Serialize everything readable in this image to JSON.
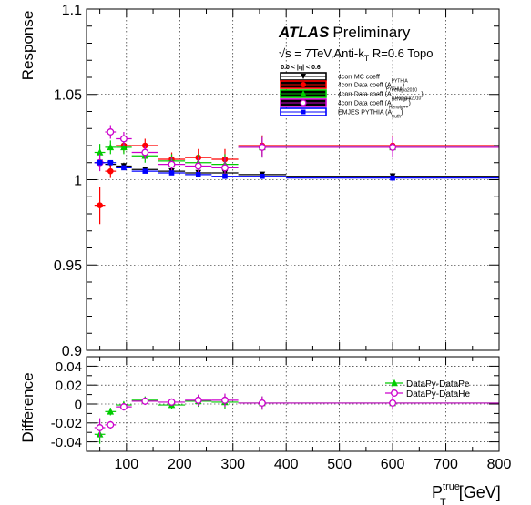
{
  "chart_data": [
    {
      "type": "scatter",
      "panel": "top",
      "ylabel": "Response",
      "ylim": [
        0.9,
        1.1
      ],
      "xlim": [
        25,
        800
      ],
      "grid": true,
      "yticks": [
        {
          "v": 0.9,
          "label": "0.9"
        },
        {
          "v": 0.95,
          "label": "0.95"
        },
        {
          "v": 1.0,
          "label": "1"
        },
        {
          "v": 1.05,
          "label": "1.05"
        },
        {
          "v": 1.1,
          "label": "1.1"
        }
      ],
      "title": {
        "bold": "ATLAS",
        "normal": "Preliminary"
      },
      "subtitle": {
        "a": "√s = 7TeV,Anti-k",
        "sub": "T",
        "b": " R=0.6 Topo"
      },
      "legend_header": "0.0 < |η| < 0.6",
      "legend": [
        {
          "name": "4corr MC coeff",
          "sup": "",
          "sub": "",
          "close": "",
          "color": "#000000",
          "box": "#ffffff",
          "marker": "down"
        },
        {
          "name": "4corr Data coeff (A",
          "sup": "PYTHIA",
          "sub": "PYTHIA",
          "close": ")",
          "color": "#ff0000",
          "box": "#000000",
          "marker": "circle"
        },
        {
          "name": "4corr Data coeff (A",
          "sup": "Perugia2010",
          "sub": "Perugia2010",
          "close": ")",
          "color": "#00cc00",
          "box": "#000000",
          "marker": "triangle"
        },
        {
          "name": "4corr Data coeff (A",
          "sup": "Herwig++",
          "sub": "Herwig++",
          "close": ")",
          "color": "#cc00cc",
          "box": "#000000",
          "marker": "open-circle"
        },
        {
          "name": "EMJES PYTHIA (A",
          "sup": "",
          "sub": "truth",
          "close": ")",
          "color": "#0000ff",
          "box": "#ffffff",
          "marker": "square"
        }
      ],
      "series": [
        {
          "name": "4corr MC coeff",
          "color": "#000000",
          "marker": "down",
          "x": [
            50,
            70,
            95,
            135,
            185,
            235,
            285,
            355,
            600
          ],
          "xerr": [
            10,
            10,
            15,
            25,
            25,
            25,
            25,
            45,
            200
          ],
          "y": [
            1.01,
            1.009,
            1.008,
            1.006,
            1.005,
            1.004,
            1.004,
            1.003,
            1.002
          ],
          "yerr": [
            0.002,
            0.002,
            0.002,
            0.001,
            0.001,
            0.001,
            0.001,
            0.001,
            0.001
          ]
        },
        {
          "name": "4corr Data coeff PYTHIA",
          "color": "#ff0000",
          "marker": "circle",
          "x": [
            50,
            70,
            95,
            135,
            185,
            235,
            285,
            355,
            600
          ],
          "xerr": [
            10,
            10,
            15,
            25,
            25,
            25,
            25,
            45,
            200
          ],
          "y": [
            0.985,
            1.005,
            1.02,
            1.02,
            1.012,
            1.013,
            1.012,
            1.02,
            1.02
          ],
          "yerr": [
            0.011,
            0.004,
            0.004,
            0.004,
            0.004,
            0.005,
            0.006,
            0.006,
            0.006
          ]
        },
        {
          "name": "4corr Data coeff Perugia2010",
          "color": "#00cc00",
          "marker": "triangle",
          "x": [
            50,
            70,
            95,
            135,
            185,
            235,
            285,
            355,
            600
          ],
          "xerr": [
            10,
            10,
            15,
            25,
            25,
            25,
            25,
            45,
            200
          ],
          "y": [
            1.016,
            1.019,
            1.019,
            1.014,
            1.011,
            1.01,
            1.009,
            1.019,
            1.019
          ],
          "yerr": [
            0.005,
            0.004,
            0.004,
            0.004,
            0.004,
            0.005,
            0.006,
            0.006,
            0.006
          ]
        },
        {
          "name": "4corr Data coeff Herwig++",
          "color": "#cc00cc",
          "marker": "open-circle",
          "x": [
            50,
            70,
            95,
            135,
            185,
            235,
            285,
            355,
            600
          ],
          "xerr": [
            10,
            10,
            15,
            25,
            25,
            25,
            25,
            45,
            200
          ],
          "y": [
            1.01,
            1.028,
            1.024,
            1.016,
            1.009,
            1.008,
            1.007,
            1.019,
            1.019
          ],
          "yerr": [
            0.005,
            0.004,
            0.004,
            0.004,
            0.004,
            0.005,
            0.006,
            0.006,
            0.006
          ]
        },
        {
          "name": "EMJES PYTHIA",
          "color": "#0000ff",
          "marker": "square",
          "x": [
            50,
            70,
            95,
            135,
            185,
            235,
            285,
            355,
            600
          ],
          "xerr": [
            10,
            10,
            15,
            25,
            25,
            25,
            25,
            45,
            200
          ],
          "y": [
            1.01,
            1.01,
            1.007,
            1.005,
            1.004,
            1.003,
            1.002,
            1.002,
            1.001
          ],
          "yerr": [
            0.001,
            0.001,
            0.001,
            0.001,
            0.001,
            0.001,
            0.001,
            0.001,
            0.001
          ]
        }
      ]
    },
    {
      "type": "scatter",
      "panel": "bottom",
      "ylabel": "Difference",
      "xlabel": {
        "main": "P",
        "sup": "true",
        "sub": "T",
        "unit": "[GeV]"
      },
      "ylim": [
        -0.05,
        0.05
      ],
      "xlim": [
        25,
        800
      ],
      "grid": true,
      "yticks": [
        {
          "v": 0.04,
          "label": "0.04"
        },
        {
          "v": 0.02,
          "label": "0.02"
        },
        {
          "v": 0.0,
          "label": "0"
        },
        {
          "v": -0.02,
          "label": "-0.02"
        },
        {
          "v": -0.04,
          "label": "-0.04"
        }
      ],
      "xticks": [
        {
          "v": 100,
          "label": "100"
        },
        {
          "v": 200,
          "label": "200"
        },
        {
          "v": 300,
          "label": "300"
        },
        {
          "v": 400,
          "label": "400"
        },
        {
          "v": 500,
          "label": "500"
        },
        {
          "v": 600,
          "label": "600"
        },
        {
          "v": 700,
          "label": "700"
        },
        {
          "v": 800,
          "label": "800"
        }
      ],
      "legend": [
        {
          "name": "DataPy-DataPe",
          "color": "#00cc00",
          "marker": "triangle"
        },
        {
          "name": "DataPy-DataHe",
          "color": "#cc00cc",
          "marker": "open-circle"
        }
      ],
      "series": [
        {
          "name": "DataPy-DataPe",
          "color": "#00cc00",
          "marker": "triangle",
          "x": [
            50,
            70,
            95,
            135,
            185,
            235,
            285,
            355,
            600
          ],
          "xerr": [
            10,
            10,
            15,
            25,
            25,
            25,
            25,
            45,
            200
          ],
          "y": [
            -0.032,
            -0.008,
            -0.001,
            0.004,
            -0.001,
            0.003,
            0.002,
            0.001,
            0.001
          ],
          "yerr": [
            0.01,
            0.004,
            0.004,
            0.004,
            0.004,
            0.006,
            0.007,
            0.007,
            0.007
          ]
        },
        {
          "name": "DataPy-DataHe",
          "color": "#cc00cc",
          "marker": "open-circle",
          "x": [
            50,
            70,
            95,
            135,
            185,
            235,
            285,
            355,
            600
          ],
          "xerr": [
            10,
            10,
            15,
            25,
            25,
            25,
            25,
            45,
            200
          ],
          "y": [
            -0.025,
            -0.022,
            -0.003,
            0.003,
            0.002,
            0.004,
            0.004,
            0.001,
            0.001
          ],
          "yerr": [
            0.01,
            0.004,
            0.004,
            0.004,
            0.004,
            0.006,
            0.007,
            0.007,
            0.007
          ]
        }
      ]
    }
  ]
}
